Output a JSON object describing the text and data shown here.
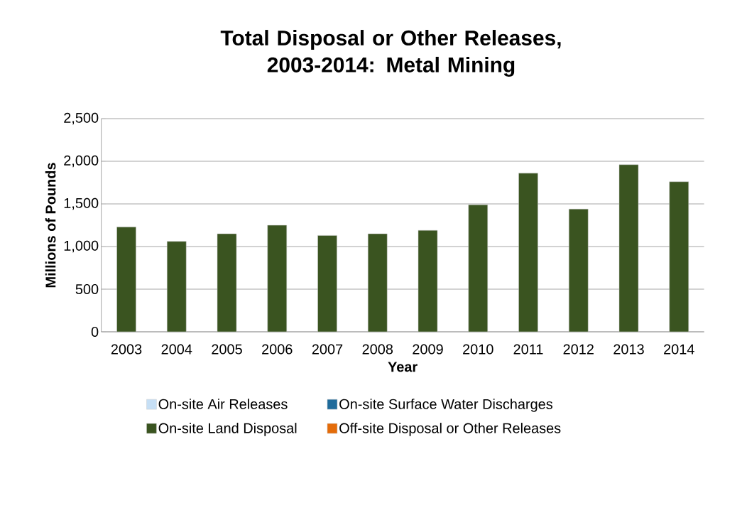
{
  "chart_data": {
    "type": "bar",
    "title": "Total Disposal or Other Releases, 2003-2014: Metal Mining",
    "xlabel": "Year",
    "ylabel": "Millions of Pounds",
    "categories": [
      "2003",
      "2004",
      "2005",
      "2006",
      "2007",
      "2008",
      "2009",
      "2010",
      "2011",
      "2012",
      "2013",
      "2014"
    ],
    "stacked": true,
    "series": [
      {
        "name": "On-site Air Releases",
        "color": "#c6dff5",
        "values": [
          0,
          0,
          0,
          0,
          0,
          0,
          0,
          0,
          0,
          0,
          0,
          0
        ]
      },
      {
        "name": "On-site Surface Water Discharges",
        "color": "#1f6b9b",
        "values": [
          0,
          0,
          0,
          0,
          0,
          0,
          0,
          0,
          0,
          0,
          0,
          0
        ]
      },
      {
        "name": "On-site Land Disposal",
        "color": "#3a5420",
        "values": [
          1230,
          1060,
          1150,
          1250,
          1130,
          1150,
          1190,
          1490,
          1860,
          1440,
          1960,
          1760
        ]
      },
      {
        "name": "Off-site Disposal or Other Releases",
        "color": "#e46c0a",
        "values": [
          0,
          0,
          0,
          0,
          0,
          0,
          0,
          0,
          0,
          0,
          0,
          0
        ]
      }
    ],
    "ylim": [
      0,
      2500
    ],
    "yticks": [
      0,
      500,
      {
        "value": 1000,
        "label": "1,000"
      },
      {
        "value": 1500,
        "label": "1,500"
      },
      {
        "value": 2000,
        "label": "2,000"
      },
      {
        "value": 2500,
        "label": "2,500"
      }
    ],
    "grid": "y",
    "legend": "bottom"
  }
}
